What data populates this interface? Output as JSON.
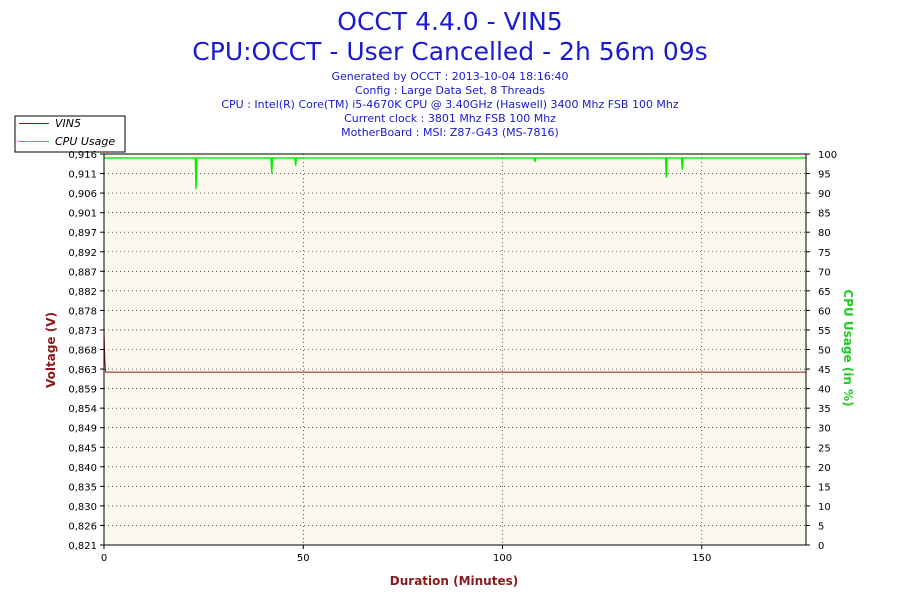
{
  "chart_data": {
    "type": "line",
    "title": "OCCT 4.4.0 - VIN5",
    "subtitle": "CPU:OCCT - User Cancelled - 2h 56m 09s",
    "info_lines": [
      "Generated by OCCT : 2013-10-04 18:16:40",
      "Config : Large Data Set, 8 Threads",
      "CPU : Intel(R) Core(TM) i5-4670K CPU @ 3.40GHz (Haswell) 3400 Mhz FSB 100 Mhz",
      "Current clock : 3801 Mhz FSB 100 Mhz",
      "MotherBoard : MSI: Z87-G43 (MS-7816)"
    ],
    "xlabel": "Duration (Minutes)",
    "ylabel_left": "Voltage (V)",
    "ylabel_right": "CPU Usage (in %)",
    "xlim": [
      0,
      176.15
    ],
    "ylim_left": [
      0.821,
      0.916
    ],
    "ylim_right": [
      0,
      100
    ],
    "x_ticks": [
      "0",
      "50",
      "100",
      "150"
    ],
    "x_tick_values": [
      0,
      50,
      100,
      150
    ],
    "y_ticks_left": [
      "0,821",
      "0,826",
      "0,830",
      "0,835",
      "0,840",
      "0,845",
      "0,849",
      "0,854",
      "0,859",
      "0,863",
      "0,868",
      "0,873",
      "0,878",
      "0,882",
      "0,887",
      "0,892",
      "0,897",
      "0,901",
      "0,906",
      "0,911",
      "0,916"
    ],
    "y_ticks_right": [
      "0",
      "5",
      "10",
      "15",
      "20",
      "25",
      "30",
      "35",
      "40",
      "45",
      "50",
      "55",
      "60",
      "65",
      "70",
      "75",
      "80",
      "85",
      "90",
      "95",
      "100"
    ],
    "grid": true,
    "legend_position": "top-left",
    "series": [
      {
        "name": "VIN5",
        "axis": "left",
        "color": "#8b1a1a",
        "x": [
          0,
          0.2,
          0.4,
          176.15
        ],
        "values": [
          0.873,
          0.866,
          0.863,
          0.863
        ]
      },
      {
        "name": "CPU Usage",
        "axis": "right",
        "color": "#00ee00",
        "x": [
          0,
          0.5,
          22.9,
          23.1,
          23.3,
          41.9,
          42.1,
          42.3,
          47.9,
          48.1,
          48.3,
          107.9,
          108.1,
          108.3,
          140.9,
          141.1,
          141.3,
          144.9,
          145.1,
          145.3,
          176.15
        ],
        "values": [
          99,
          99,
          99,
          91,
          99,
          99,
          95,
          99,
          99,
          97,
          99,
          99,
          98,
          99,
          99,
          94,
          99,
          99,
          96,
          99,
          99
        ]
      }
    ]
  }
}
